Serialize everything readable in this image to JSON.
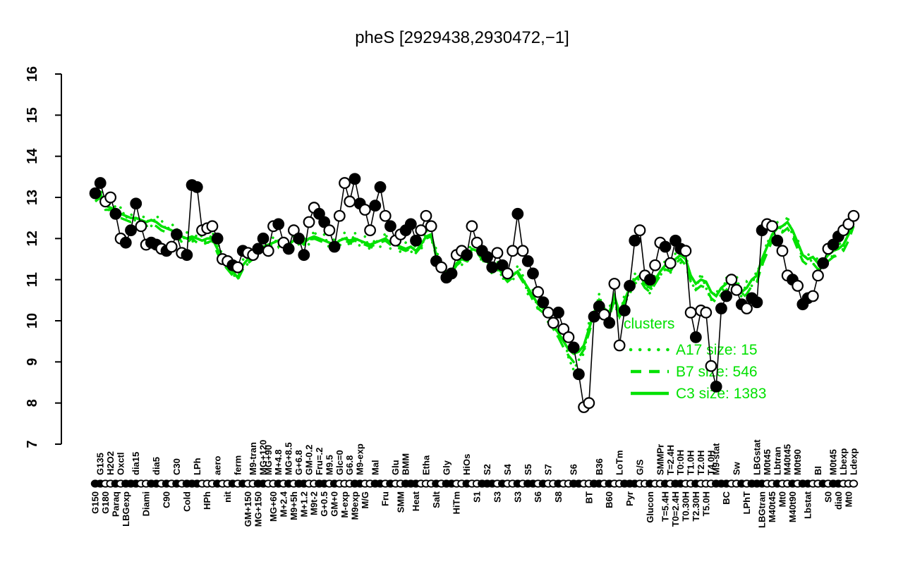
{
  "chart_data": {
    "type": "line",
    "title": "pheS [2929438,2930472,−1]",
    "gene": "pheS",
    "coordinates": {
      "start": 2929438,
      "end": 2930472,
      "strand": -1
    },
    "ylim": [
      7,
      16
    ],
    "yticks": [
      7,
      8,
      9,
      10,
      11,
      12,
      13,
      14,
      15,
      16
    ],
    "grid": false,
    "colors": {
      "accent_green": "#00e100",
      "series_black": "#000000",
      "background": "#ffffff"
    },
    "legend": {
      "title": "clusters",
      "position": "right-center",
      "entries": [
        {
          "label": "A17 size: 15",
          "cluster": "A17",
          "size": 15,
          "style": "dotted"
        },
        {
          "label": "B7 size: 546",
          "cluster": "B7",
          "size": 546,
          "style": "dashed"
        },
        {
          "label": "C3 size: 1383",
          "cluster": "C3",
          "size": 1383,
          "style": "solid"
        }
      ]
    },
    "marker_pattern": "ffoofofffooffofofofffooofoofofooffoofofoffooffofoooffooffofoofffooofoffoofoofffofoofoffofoofooffooffofoofffoofoofoffoofooofffoofofffoofoofoffoofoffoo",
    "x_categories": [
      {
        "i": 0,
        "label": "G150",
        "row": "b"
      },
      {
        "i": 1,
        "label": "G135",
        "row": "t"
      },
      {
        "i": 2,
        "label": "G180",
        "row": "b"
      },
      {
        "i": 3,
        "label": "H2O2",
        "row": "t"
      },
      {
        "i": 4,
        "label": "Paraq",
        "row": "b"
      },
      {
        "i": 5,
        "label": "Oxctl",
        "row": "t"
      },
      {
        "i": 6,
        "label": "LBGexp",
        "row": "b"
      },
      {
        "i": 8,
        "label": "dia15",
        "row": "t"
      },
      {
        "i": 10,
        "label": "Diami",
        "row": "b"
      },
      {
        "i": 12,
        "label": "dia5",
        "row": "t"
      },
      {
        "i": 14,
        "label": "C90",
        "row": "b"
      },
      {
        "i": 16,
        "label": "C30",
        "row": "t"
      },
      {
        "i": 18,
        "label": "Cold",
        "row": "b"
      },
      {
        "i": 20,
        "label": "LPh",
        "row": "t"
      },
      {
        "i": 22,
        "label": "HPh",
        "row": "b"
      },
      {
        "i": 24,
        "label": "aero",
        "row": "t"
      },
      {
        "i": 26,
        "label": "nit",
        "row": "b"
      },
      {
        "i": 28,
        "label": "ferm",
        "row": "t"
      },
      {
        "i": 30,
        "label": "GM+150",
        "row": "b"
      },
      {
        "i": 31,
        "label": "M9-tran",
        "row": "t"
      },
      {
        "i": 32,
        "label": "MG+150",
        "row": "b"
      },
      {
        "i": 33,
        "label": "MG+120",
        "row": "t"
      },
      {
        "i": 34,
        "label": "MG+90",
        "row": "t"
      },
      {
        "i": 35,
        "label": "MG+60",
        "row": "b"
      },
      {
        "i": 36,
        "label": "M+4.8",
        "row": "t"
      },
      {
        "i": 37,
        "label": "M+2.4",
        "row": "b"
      },
      {
        "i": 38,
        "label": "MG+8.5",
        "row": "t"
      },
      {
        "i": 39,
        "label": "M9+5h",
        "row": "b"
      },
      {
        "i": 40,
        "label": "G+6.8",
        "row": "t"
      },
      {
        "i": 41,
        "label": "M+1.2",
        "row": "b"
      },
      {
        "i": 42,
        "label": "GM-0.2",
        "row": "t"
      },
      {
        "i": 43,
        "label": "M9t-2",
        "row": "b"
      },
      {
        "i": 44,
        "label": "Fru=.2",
        "row": "t"
      },
      {
        "i": 45,
        "label": "G+0.5",
        "row": "b"
      },
      {
        "i": 46,
        "label": "M9.5",
        "row": "t"
      },
      {
        "i": 47,
        "label": "GM+0",
        "row": "b"
      },
      {
        "i": 48,
        "label": "Glc=0",
        "row": "t"
      },
      {
        "i": 49,
        "label": "M-exp",
        "row": "b"
      },
      {
        "i": 50,
        "label": "G6.8",
        "row": "t"
      },
      {
        "i": 51,
        "label": "M9exp",
        "row": "b"
      },
      {
        "i": 52,
        "label": "M9-exp",
        "row": "t"
      },
      {
        "i": 53,
        "label": "M/G",
        "row": "b"
      },
      {
        "i": 55,
        "label": "Mal",
        "row": "t"
      },
      {
        "i": 57,
        "label": "Fru",
        "row": "b"
      },
      {
        "i": 59,
        "label": "Glu",
        "row": "t"
      },
      {
        "i": 60,
        "label": "SMM",
        "row": "b"
      },
      {
        "i": 61,
        "label": "BMM",
        "row": "t"
      },
      {
        "i": 63,
        "label": "Heat",
        "row": "b"
      },
      {
        "i": 65,
        "label": "Etha",
        "row": "t"
      },
      {
        "i": 67,
        "label": "Salt",
        "row": "b"
      },
      {
        "i": 69,
        "label": "Gly",
        "row": "t"
      },
      {
        "i": 71,
        "label": "HiTm",
        "row": "b"
      },
      {
        "i": 73,
        "label": "HiOs",
        "row": "t"
      },
      {
        "i": 75,
        "label": "S1",
        "row": "b"
      },
      {
        "i": 77,
        "label": "S2",
        "row": "t"
      },
      {
        "i": 79,
        "label": "S3",
        "row": "b"
      },
      {
        "i": 81,
        "label": "S4",
        "row": "t"
      },
      {
        "i": 83,
        "label": "S3",
        "row": "b"
      },
      {
        "i": 85,
        "label": "S5",
        "row": "t"
      },
      {
        "i": 87,
        "label": "S6",
        "row": "b"
      },
      {
        "i": 89,
        "label": "S7",
        "row": "t"
      },
      {
        "i": 91,
        "label": "S8",
        "row": "b"
      },
      {
        "i": 94,
        "label": "S6",
        "row": "t"
      },
      {
        "i": 97,
        "label": "BT",
        "row": "b"
      },
      {
        "i": 99,
        "label": "B36",
        "row": "t"
      },
      {
        "i": 101,
        "label": "B60",
        "row": "b"
      },
      {
        "i": 103,
        "label": "LoTm",
        "row": "t"
      },
      {
        "i": 105,
        "label": "Pyr",
        "row": "b"
      },
      {
        "i": 107,
        "label": "G/S",
        "row": "t"
      },
      {
        "i": 109,
        "label": "Glucon",
        "row": "b"
      },
      {
        "i": 111,
        "label": "SMMPr",
        "row": "t"
      },
      {
        "i": 112,
        "label": "T=5.4H",
        "row": "b"
      },
      {
        "i": 113,
        "label": "T=2.4H",
        "row": "t"
      },
      {
        "i": 114,
        "label": "T0=2.4H",
        "row": "b"
      },
      {
        "i": 115,
        "label": "T0:0H",
        "row": "t"
      },
      {
        "i": 116,
        "label": "T0.30H",
        "row": "b"
      },
      {
        "i": 117,
        "label": "T1.0H",
        "row": "t"
      },
      {
        "i": 118,
        "label": "T2.30H",
        "row": "b"
      },
      {
        "i": 119,
        "label": "T2.0H",
        "row": "t"
      },
      {
        "i": 120,
        "label": "T5.0H",
        "row": "b"
      },
      {
        "i": 121,
        "label": "T4.0H",
        "row": "t"
      },
      {
        "i": 122,
        "label": "M9-stat",
        "row": "t"
      },
      {
        "i": 124,
        "label": "BC",
        "row": "b"
      },
      {
        "i": 126,
        "label": "Sw",
        "row": "t"
      },
      {
        "i": 128,
        "label": "LPhT",
        "row": "b"
      },
      {
        "i": 130,
        "label": "LBGstat",
        "row": "t"
      },
      {
        "i": 131,
        "label": "LBGtran",
        "row": "b"
      },
      {
        "i": 132,
        "label": "M0t45",
        "row": "t"
      },
      {
        "i": 133,
        "label": "M40t45",
        "row": "b"
      },
      {
        "i": 134,
        "label": "Lbtran",
        "row": "t"
      },
      {
        "i": 135,
        "label": "Mt0",
        "row": "b"
      },
      {
        "i": 136,
        "label": "M40t45",
        "row": "t"
      },
      {
        "i": 137,
        "label": "M40t90",
        "row": "b"
      },
      {
        "i": 138,
        "label": "M0t90",
        "row": "t"
      },
      {
        "i": 140,
        "label": "Lbstat",
        "row": "b"
      },
      {
        "i": 142,
        "label": "BI",
        "row": "t"
      },
      {
        "i": 144,
        "label": "S0",
        "row": "b"
      },
      {
        "i": 145,
        "label": "M0t45",
        "row": "t"
      },
      {
        "i": 146,
        "label": "dia0",
        "row": "b"
      },
      {
        "i": 147,
        "label": "Lbexp",
        "row": "t"
      },
      {
        "i": 148,
        "label": "Mt0",
        "row": "b"
      },
      {
        "i": 149,
        "label": "Ldexp",
        "row": "t"
      }
    ],
    "series": [
      {
        "name": "pheS expression",
        "color": "black",
        "style": "points+line",
        "values": [
          13.1,
          13.35,
          12.9,
          13.0,
          12.6,
          12.0,
          11.9,
          12.2,
          12.85,
          12.3,
          11.85,
          11.9,
          11.85,
          11.75,
          11.7,
          11.8,
          12.1,
          11.65,
          11.6,
          13.3,
          13.25,
          12.2,
          12.25,
          12.3,
          12.0,
          11.5,
          11.45,
          11.35,
          11.3,
          11.7,
          11.65,
          11.6,
          11.75,
          12.0,
          11.7,
          12.3,
          12.35,
          11.9,
          11.75,
          12.2,
          12.0,
          11.6,
          12.4,
          12.75,
          12.6,
          12.4,
          12.2,
          11.8,
          12.55,
          13.35,
          12.9,
          13.45,
          12.85,
          12.7,
          12.2,
          12.8,
          13.25,
          12.55,
          12.3,
          11.95,
          12.1,
          12.2,
          12.35,
          11.95,
          12.2,
          12.55,
          12.3,
          11.45,
          11.3,
          11.05,
          11.15,
          11.6,
          11.7,
          11.6,
          12.3,
          11.9,
          11.7,
          11.55,
          11.3,
          11.65,
          11.35,
          11.15,
          11.7,
          12.6,
          11.7,
          11.45,
          11.15,
          10.7,
          10.45,
          10.2,
          9.95,
          10.2,
          9.8,
          9.6,
          9.35,
          8.7,
          7.9,
          8.0,
          10.1,
          10.35,
          10.15,
          9.95,
          10.9,
          9.4,
          10.25,
          10.85,
          11.95,
          12.2,
          11.1,
          11.0,
          11.35,
          11.9,
          11.8,
          11.4,
          11.95,
          11.75,
          11.7,
          10.2,
          9.6,
          10.25,
          10.2,
          8.9,
          8.4,
          10.3,
          10.6,
          11.0,
          10.75,
          10.4,
          10.3,
          10.55,
          10.45,
          12.2,
          12.35,
          12.3,
          11.95,
          11.7,
          11.1,
          11.0,
          10.85,
          10.4,
          10.55,
          10.6,
          11.1,
          11.4,
          11.75,
          11.85,
          12.05,
          12.2,
          12.35,
          12.55
        ]
      },
      {
        "name": "A17 cluster mean",
        "color": "green",
        "style": "dotted",
        "values": [
          13.0,
          13.2,
          12.9,
          12.6,
          12.8,
          12.75,
          12.5,
          12.6,
          12.4,
          12.55,
          12.5,
          12.3,
          12.55,
          12.45,
          12.2,
          12.35,
          12.25,
          11.9,
          12.15,
          11.9,
          12.1,
          12.05,
          11.85,
          12.15,
          11.9,
          11.6,
          11.5,
          11.05,
          11.2,
          11.5,
          11.35,
          11.75,
          11.55,
          11.95,
          11.7,
          12.05,
          11.8,
          12.0,
          11.7,
          12.1,
          11.85,
          12.05,
          11.85,
          12.2,
          11.9,
          12.1,
          11.75,
          12.0,
          11.8,
          12.15,
          11.8,
          12.15,
          11.8,
          12.05,
          11.7,
          12.0,
          11.8,
          12.15,
          11.75,
          12.0,
          11.65,
          11.9,
          11.65,
          11.85,
          11.7,
          12.2,
          11.95,
          11.75,
          11.25,
          11.3,
          11.05,
          11.55,
          11.35,
          11.6,
          11.9,
          11.85,
          11.4,
          11.6,
          11.1,
          11.45,
          11.0,
          11.15,
          10.95,
          11.35,
          11.1,
          10.65,
          10.75,
          10.25,
          10.45,
          9.95,
          10.05,
          9.55,
          9.65,
          9.1,
          8.8,
          9.05,
          9.2,
          9.95,
          10.05,
          10.65,
          10.15,
          10.35,
          10.45,
          10.05,
          10.65,
          10.6,
          11.15,
          10.95,
          11.05,
          10.65,
          11.15,
          11.05,
          11.5,
          11.15,
          11.65,
          11.4,
          11.65,
          10.95,
          10.75,
          11.15,
          10.8,
          10.5,
          10.75,
          10.6,
          11.05,
          10.9,
          11.1,
          10.55,
          10.95,
          10.85,
          11.25,
          11.3,
          11.95,
          11.9,
          12.4,
          12.15,
          12.55,
          12.05,
          12.0,
          11.45,
          11.65,
          11.35,
          11.55,
          11.25,
          11.75,
          11.5,
          11.95,
          11.7,
          12.25,
          12.5
        ]
      },
      {
        "name": "B7 cluster mean",
        "color": "green",
        "style": "dashed",
        "values": [
          12.9,
          13.0,
          12.7,
          12.7,
          12.6,
          12.5,
          12.45,
          12.4,
          12.45,
          12.35,
          12.3,
          12.35,
          12.3,
          12.2,
          12.15,
          12.1,
          12.0,
          11.95,
          11.9,
          12.0,
          11.9,
          11.85,
          11.9,
          11.95,
          11.65,
          11.4,
          11.25,
          11.1,
          11.0,
          11.25,
          11.4,
          11.5,
          11.65,
          11.75,
          11.8,
          11.85,
          11.9,
          11.85,
          11.8,
          11.9,
          11.95,
          11.85,
          11.95,
          12.0,
          11.95,
          11.9,
          11.85,
          11.8,
          11.9,
          11.95,
          11.9,
          11.95,
          11.9,
          11.85,
          11.8,
          11.85,
          11.9,
          11.95,
          11.85,
          11.8,
          11.75,
          11.7,
          11.75,
          11.65,
          11.8,
          12.0,
          12.05,
          11.55,
          11.35,
          11.1,
          11.15,
          11.35,
          11.45,
          11.4,
          11.7,
          11.65,
          11.5,
          11.4,
          11.2,
          11.25,
          11.1,
          10.95,
          11.05,
          11.15,
          10.95,
          10.75,
          10.5,
          10.3,
          10.2,
          10.05,
          9.8,
          9.6,
          9.35,
          9.15,
          9.0,
          9.1,
          9.3,
          9.7,
          10.1,
          10.4,
          10.2,
          10.1,
          10.5,
          10.1,
          10.4,
          10.7,
          10.9,
          11.0,
          10.8,
          10.7,
          10.9,
          11.1,
          11.25,
          11.2,
          11.4,
          11.5,
          11.35,
          10.95,
          10.75,
          10.85,
          10.8,
          10.55,
          10.45,
          10.65,
          10.75,
          10.9,
          10.75,
          10.55,
          10.65,
          10.85,
          10.95,
          11.35,
          11.65,
          11.95,
          12.1,
          12.15,
          12.25,
          12.05,
          11.75,
          11.45,
          11.35,
          11.4,
          11.25,
          11.3,
          11.45,
          11.55,
          11.6,
          11.7,
          11.95,
          12.3
        ]
      },
      {
        "name": "C3 cluster mean",
        "color": "green",
        "style": "solid",
        "values": [
          12.95,
          13.1,
          12.8,
          12.75,
          12.7,
          12.6,
          12.55,
          12.5,
          12.5,
          12.45,
          12.4,
          12.45,
          12.4,
          12.3,
          12.25,
          12.2,
          12.1,
          12.05,
          12.0,
          12.05,
          12.0,
          11.95,
          12.0,
          12.0,
          11.75,
          11.5,
          11.35,
          11.2,
          11.05,
          11.35,
          11.5,
          11.6,
          11.7,
          11.8,
          11.85,
          11.9,
          11.95,
          11.9,
          11.85,
          11.95,
          12.0,
          11.9,
          12.0,
          12.05,
          12.0,
          11.95,
          11.9,
          11.85,
          11.95,
          12.0,
          11.95,
          12.0,
          11.95,
          11.9,
          11.85,
          11.9,
          11.95,
          12.0,
          11.9,
          11.85,
          11.8,
          11.75,
          11.8,
          11.7,
          11.85,
          12.05,
          12.1,
          11.6,
          11.4,
          11.15,
          11.2,
          11.4,
          11.5,
          11.45,
          11.75,
          11.7,
          11.55,
          11.45,
          11.25,
          11.3,
          11.15,
          11.0,
          11.1,
          11.2,
          11.0,
          10.8,
          10.6,
          10.4,
          10.3,
          10.15,
          9.9,
          9.7,
          9.5,
          9.3,
          9.2,
          9.25,
          9.4,
          9.8,
          10.2,
          10.5,
          10.3,
          10.2,
          10.6,
          10.2,
          10.5,
          10.8,
          11.0,
          11.1,
          10.9,
          10.8,
          11.0,
          11.2,
          11.35,
          11.3,
          11.5,
          11.6,
          11.5,
          11.1,
          10.9,
          11.0,
          10.95,
          10.7,
          10.6,
          10.8,
          10.9,
          11.05,
          10.9,
          10.7,
          10.8,
          11.0,
          11.1,
          11.5,
          11.8,
          12.1,
          12.25,
          12.3,
          12.4,
          12.2,
          11.9,
          11.6,
          11.5,
          11.55,
          11.4,
          11.45,
          11.6,
          11.7,
          11.75,
          11.85,
          12.1,
          12.45
        ]
      }
    ]
  }
}
